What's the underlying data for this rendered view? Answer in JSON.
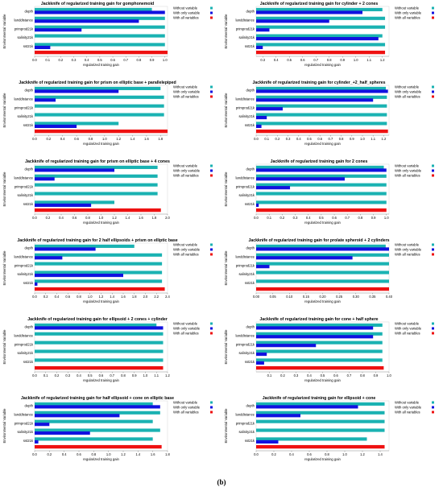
{
  "caption": "(b)",
  "chart_data": [
    {
      "type": "bar",
      "title": "Jackknife of regularized training gain for gomphonemoid",
      "xlabel": "regularized training gain",
      "ylabel": "Environmental Variable",
      "categories": [
        "depth",
        "landdistance",
        "primprod21k",
        "salinity21k",
        "sst21k"
      ],
      "series": [
        {
          "name": "Without variable",
          "color": "#1ab2b2",
          "values": [
            0.9,
            1.0,
            1.0,
            1.0,
            1.0
          ]
        },
        {
          "name": "With only variable",
          "color": "#1111e0",
          "values": [
            1.0,
            0.8,
            0.36,
            0.0,
            0.12
          ]
        },
        {
          "name": "With all variables",
          "color": "#ee1111",
          "value": 1.02
        }
      ],
      "xlim": [
        0,
        1.02
      ],
      "xticks": [
        "0.0",
        "0.1",
        "0.2",
        "0.3",
        "0.4",
        "0.5",
        "0.6",
        "0.7",
        "0.8",
        "0.9",
        "1.0"
      ]
    },
    {
      "type": "bar",
      "title": "Jackknife of regularized training gain for cylinder + 2  cones",
      "xlabel": "regularized training gain",
      "ylabel": "Environmental Variable",
      "categories": [
        "depth",
        "landdistance",
        "primprod21k",
        "salinity21k",
        "sst21k"
      ],
      "series": [
        {
          "name": "Without variable",
          "color": "#1ab2b2",
          "values": [
            1.2,
            1.22,
            1.22,
            1.2,
            1.22
          ]
        },
        {
          "name": "With only variable",
          "color": "#1111e0",
          "values": [
            1.05,
            0.8,
            0.35,
            1.17,
            0.3
          ]
        },
        {
          "name": "With all variables",
          "color": "#ee1111",
          "value": 1.22
        }
      ],
      "xlim": [
        0.25,
        1.25
      ],
      "xticks": [
        "0.3",
        "0.4",
        "0.5",
        "0.6",
        "0.7",
        "0.8",
        "0.9",
        "1.0",
        "1.1",
        "1.2"
      ]
    },
    {
      "type": "bar",
      "title": "Jackknife of regularized training gain for prism  on  elliptic  base  +  parallelepiped",
      "xlabel": "regularized training gain",
      "ylabel": "Environmental Variable",
      "categories": [
        "depth",
        "landdistance",
        "primprod21k",
        "salinity21k",
        "sst21k"
      ],
      "series": [
        {
          "name": "Without variable",
          "color": "#1ab2b2",
          "values": [
            1.8,
            1.85,
            1.85,
            1.85,
            1.2
          ]
        },
        {
          "name": "With only variable",
          "color": "#1111e0",
          "values": [
            1.2,
            0.3,
            0.0,
            0.0,
            0.6
          ]
        },
        {
          "name": "With all variables",
          "color": "#ee1111",
          "value": 1.9
        }
      ],
      "xlim": [
        0,
        1.9
      ],
      "xticks": [
        "0.0",
        "0.2",
        "0.4",
        "0.6",
        "0.8",
        "1.0",
        "1.2",
        "1.4",
        "1.6",
        "1.8"
      ]
    },
    {
      "type": "bar",
      "title": "Jackknife of regularized training gain for cylinder_+2_half_spheres",
      "xlabel": "regularized training gain",
      "ylabel": "Environmental Variable",
      "categories": [
        "depth",
        "landdistance",
        "primprod21k",
        "salinity21k",
        "sst21k"
      ],
      "series": [
        {
          "name": "Without variable",
          "color": "#1ab2b2",
          "values": [
            1.22,
            1.23,
            1.23,
            1.23,
            1.23
          ]
        },
        {
          "name": "With only variable",
          "color": "#1111e0",
          "values": [
            1.24,
            1.1,
            0.25,
            0.1,
            0.05
          ]
        },
        {
          "name": "With all variables",
          "color": "#ee1111",
          "value": 1.24
        }
      ],
      "xlim": [
        0,
        1.25
      ],
      "xticks": [
        "0.0",
        "0.1",
        "0.2",
        "0.3",
        "0.4",
        "0.5",
        "0.6",
        "0.7",
        "0.8",
        "0.9",
        "1.0",
        "1.1",
        "1.2"
      ]
    },
    {
      "type": "bar",
      "title": "Jackknife of regularized training gain for prism  on  elliptic  base  +  4  cones",
      "xlabel": "regularized training gain",
      "ylabel": "Environmental Variable",
      "categories": [
        "depth",
        "landdistance",
        "primprod21k",
        "salinity21k",
        "sst21k"
      ],
      "series": [
        {
          "name": "Without variable",
          "color": "#1ab2b2",
          "values": [
            1.85,
            1.85,
            1.85,
            1.85,
            1.2
          ]
        },
        {
          "name": "With only variable",
          "color": "#1111e0",
          "values": [
            1.2,
            0.3,
            0.0,
            0.0,
            0.85
          ]
        },
        {
          "name": "With all variables",
          "color": "#ee1111",
          "value": 1.9
        }
      ],
      "xlim": [
        0,
        2.0
      ],
      "xticks": [
        "0.0",
        "0.2",
        "0.4",
        "0.6",
        "0.8",
        "1.0",
        "1.2",
        "1.4",
        "1.6",
        "1.8",
        "2.0"
      ]
    },
    {
      "type": "bar",
      "title": "Jackknife of regularized training gain for 2  cones",
      "xlabel": "regularized training gain",
      "ylabel": "Environmental Variable",
      "categories": [
        "depth",
        "landdistance",
        "primprod21k",
        "salinity21k",
        "sst21k"
      ],
      "series": [
        {
          "name": "Without variable",
          "color": "#1ab2b2",
          "values": [
            0.98,
            1.0,
            1.0,
            1.0,
            1.0
          ]
        },
        {
          "name": "With only variable",
          "color": "#1111e0",
          "values": [
            1.0,
            0.68,
            0.26,
            0.0,
            0.02
          ]
        },
        {
          "name": "With all variables",
          "color": "#ee1111",
          "value": 1.0
        }
      ],
      "xlim": [
        0,
        1.02
      ],
      "xticks": [
        "0.0",
        "0.1",
        "0.2",
        "0.3",
        "0.4",
        "0.5",
        "0.6",
        "0.7",
        "0.8",
        "0.9",
        "1.0"
      ]
    },
    {
      "type": "bar",
      "title": "Jackknife of regularized training gain for 2  half  ellipsoids  +  prism  on  elliptic  base",
      "xlabel": "regularized training gain",
      "ylabel": "Environmental Variable",
      "categories": [
        "depth",
        "landdistance",
        "primprod21k",
        "salinity21k",
        "sst21k"
      ],
      "series": [
        {
          "name": "Without variable",
          "color": "#1ab2b2",
          "values": [
            1.8,
            2.3,
            2.3,
            2.3,
            2.3
          ]
        },
        {
          "name": "With only variable",
          "color": "#1111e0",
          "values": [
            1.1,
            0.5,
            0.0,
            1.6,
            0.05
          ]
        },
        {
          "name": "With all variables",
          "color": "#ee1111",
          "value": 2.35
        }
      ],
      "xlim": [
        0,
        2.4
      ],
      "xticks": [
        "0.0",
        "0.2",
        "0.4",
        "0.6",
        "0.8",
        "1.0",
        "1.2",
        "1.4",
        "1.6",
        "1.8",
        "2.0",
        "2.2",
        "2.4"
      ]
    },
    {
      "type": "bar",
      "title": "Jackknife of regularized training gain for prolate  spheroid  +  2  cylinders",
      "xlabel": "regularized training gain",
      "ylabel": "Environmental Variable",
      "categories": [
        "depth",
        "landdistance",
        "primprod21k",
        "salinity21k",
        "sst21k"
      ],
      "series": [
        {
          "name": "Without variable",
          "color": "#1ab2b2",
          "values": [
            0.39,
            0.4,
            0.4,
            0.4,
            0.4
          ]
        },
        {
          "name": "With only variable",
          "color": "#1111e0",
          "values": [
            0.4,
            0.29,
            0.04,
            0.0,
            0.0
          ]
        },
        {
          "name": "With all variables",
          "color": "#ee1111",
          "value": 0.4
        }
      ],
      "xlim": [
        0,
        0.4
      ],
      "xticks": [
        "0.00",
        "0.05",
        "0.10",
        "0.15",
        "0.20",
        "0.25",
        "0.30",
        "0.35",
        "0.40"
      ]
    },
    {
      "type": "bar",
      "title": "Jackknife of regularized training gain for ellipsoid  +  2  cones  +  cylinder",
      "xlabel": "regularized training gain",
      "ylabel": "Environmental Variable",
      "categories": [
        "depth",
        "landdistance",
        "primprod21k",
        "salinity21k",
        "sst21k"
      ],
      "series": [
        {
          "name": "Without variable",
          "color": "#1ab2b2",
          "values": [
            1.1,
            1.16,
            1.16,
            1.16,
            1.16
          ]
        },
        {
          "name": "With only variable",
          "color": "#1111e0",
          "values": [
            1.16,
            0.0,
            0.0,
            0.0,
            0.0
          ]
        },
        {
          "name": "With all variables",
          "color": "#ee1111",
          "value": 1.16
        }
      ],
      "xlim": [
        0,
        1.2
      ],
      "xticks": [
        "0.0",
        "0.1",
        "0.2",
        "0.3",
        "0.4",
        "0.5",
        "0.6",
        "0.7",
        "0.8",
        "0.9",
        "1.0",
        "1.1",
        "1.2"
      ]
    },
    {
      "type": "bar",
      "title": "Jackknife of regularized training gain for cone + half  sphere",
      "xlabel": "regularized training gain",
      "ylabel": "Environmental Variable",
      "categories": [
        "depth",
        "landdistance",
        "primprod21k",
        "salinity21k",
        "sst21k"
      ],
      "series": [
        {
          "name": "Without variable",
          "color": "#1ab2b2",
          "values": [
            0.95,
            0.95,
            0.95,
            0.95,
            0.95
          ]
        },
        {
          "name": "With only variable",
          "color": "#1111e0",
          "values": [
            0.88,
            0.88,
            0.45,
            0.08,
            0.06
          ]
        },
        {
          "name": "With all variables",
          "color": "#ee1111",
          "value": 0.96
        }
      ],
      "xlim": [
        0,
        1.0
      ],
      "xticks": [
        "0.1",
        "0.2",
        "0.3",
        "0.4",
        "0.5",
        "0.6",
        "0.7",
        "0.8",
        "0.9",
        "1.0"
      ]
    },
    {
      "type": "bar",
      "title": "Jackknife of regularized training gain for half  ellipsoid  +  cone  on  elliptic  base",
      "xlabel": "regularized training gain",
      "ylabel": "Environmental Variable",
      "categories": [
        "depth",
        "landdistance",
        "primprod21k",
        "salinity21k",
        "sst21k"
      ],
      "series": [
        {
          "name": "Without variable",
          "color": "#1ab2b2",
          "values": [
            1.6,
            1.7,
            1.6,
            1.7,
            1.6
          ]
        },
        {
          "name": "With only variable",
          "color": "#1111e0",
          "values": [
            1.7,
            1.15,
            0.2,
            0.75,
            0.05
          ]
        },
        {
          "name": "With all variables",
          "color": "#ee1111",
          "value": 1.72
        }
      ],
      "xlim": [
        0,
        1.8
      ],
      "xticks": [
        "0.0",
        "0.2",
        "0.4",
        "0.6",
        "0.8",
        "1.0",
        "1.2",
        "1.4",
        "1.6",
        "1.8"
      ]
    },
    {
      "type": "bar",
      "title": "Jackknife of regularized training gain for ellipsoid  +  cone",
      "xlabel": "regularized training gain",
      "ylabel": "Environmental Variable",
      "categories": [
        "depth",
        "landdistance",
        "primprod21k",
        "salinity21k",
        "sst21k"
      ],
      "series": [
        {
          "name": "Without variable",
          "color": "#1ab2b2",
          "values": [
            1.45,
            1.45,
            1.45,
            1.45,
            1.25
          ]
        },
        {
          "name": "With only variable",
          "color": "#1111e0",
          "values": [
            1.15,
            0.5,
            0.0,
            0.0,
            0.25
          ]
        },
        {
          "name": "With all variables",
          "color": "#ee1111",
          "value": 1.45
        }
      ],
      "xlim": [
        0,
        1.5
      ],
      "xticks": [
        "0.0",
        "0.2",
        "0.4",
        "0.6",
        "0.8",
        "1.0",
        "1.2",
        "1.4"
      ]
    }
  ]
}
